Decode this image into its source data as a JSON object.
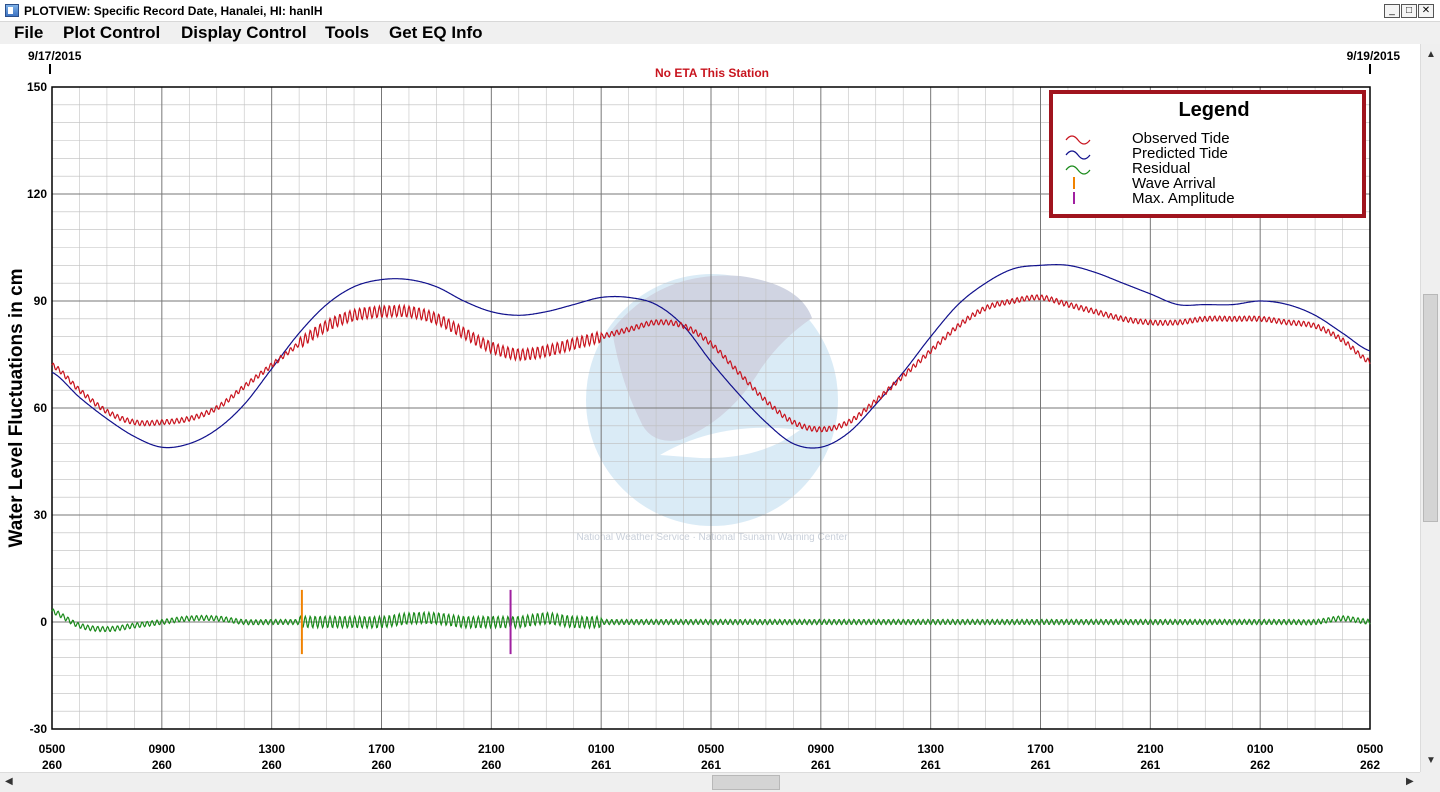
{
  "window": {
    "title": "PLOTVIEW: Specific Record Date, Hanalei, HI: hanlH",
    "controls": {
      "minimize": "_",
      "maximize": "□",
      "close": "✕"
    }
  },
  "menu": [
    {
      "id": "file",
      "label": "File"
    },
    {
      "id": "plot-control",
      "label": "Plot Control"
    },
    {
      "id": "display-control",
      "label": "Display Control"
    },
    {
      "id": "tools",
      "label": "Tools"
    },
    {
      "id": "get-eq-info",
      "label": "Get EQ Info"
    }
  ],
  "plot": {
    "date_start": "9/17/2015",
    "date_end": "9/19/2015",
    "eta_text": "No ETA This Station",
    "ylabel": "Water Level Fluctuations in cm",
    "watermark_text": "National Weather Service · National Tsunami Warning Center",
    "colors": {
      "observed": "#c8141e",
      "predicted": "#10108c",
      "residual": "#1a8a1a",
      "wave_arrival": "#f08200",
      "max_amplitude": "#a020a0",
      "legend_border": "#a0141e",
      "eta": "#c8141e",
      "grid": "#9a9a9a"
    }
  },
  "chart_data": {
    "type": "line",
    "title": "No ETA This Station",
    "ylabel": "Water Level Fluctuations in cm",
    "ylim": [
      -30,
      150
    ],
    "yticks": [
      -30,
      0,
      30,
      60,
      90,
      120,
      150
    ],
    "xlim_hours": [
      0,
      48
    ],
    "xticks": [
      {
        "hour": "0500",
        "day": "260"
      },
      {
        "hour": "0900",
        "day": "260"
      },
      {
        "hour": "1300",
        "day": "260"
      },
      {
        "hour": "1700",
        "day": "260"
      },
      {
        "hour": "2100",
        "day": "260"
      },
      {
        "hour": "0100",
        "day": "261"
      },
      {
        "hour": "0500",
        "day": "261"
      },
      {
        "hour": "0900",
        "day": "261"
      },
      {
        "hour": "1300",
        "day": "261"
      },
      {
        "hour": "1700",
        "day": "261"
      },
      {
        "hour": "2100",
        "day": "261"
      },
      {
        "hour": "0100",
        "day": "262"
      },
      {
        "hour": "0500",
        "day": "262"
      }
    ],
    "grid": true,
    "legend": {
      "title": "Legend",
      "position": "top-right",
      "items": [
        {
          "label": "Observed Tide",
          "key": "observed",
          "symbol": "wave"
        },
        {
          "label": "Predicted Tide",
          "key": "predicted",
          "symbol": "wave"
        },
        {
          "label": "Residual",
          "key": "residual",
          "symbol": "wave"
        },
        {
          "label": "Wave Arrival",
          "key": "wave_arrival",
          "symbol": "bar"
        },
        {
          "label": "Max. Amplitude",
          "key": "max_amplitude",
          "symbol": "bar"
        }
      ]
    },
    "series": [
      {
        "key": "predicted",
        "x": [
          0,
          1,
          2,
          3,
          4,
          5,
          6,
          7,
          8,
          9,
          10,
          11,
          12,
          13,
          14,
          15,
          16,
          17,
          18,
          19,
          20,
          21,
          22,
          23,
          24,
          25,
          26,
          27,
          28,
          29,
          30,
          31,
          32,
          33,
          34,
          35,
          36,
          37,
          38,
          39,
          40,
          41,
          42,
          43,
          44,
          45,
          46,
          47,
          48
        ],
        "y": [
          70,
          63,
          57,
          52,
          49,
          50,
          54,
          61,
          71,
          81,
          89,
          94,
          96,
          96,
          94,
          90,
          87,
          86,
          87,
          89,
          91,
          91,
          89,
          83,
          73,
          64,
          56,
          50,
          49,
          53,
          61,
          70,
          80,
          89,
          95,
          99,
          100,
          100,
          98,
          95,
          92,
          89,
          89,
          89,
          90,
          89,
          86,
          81,
          76
        ]
      },
      {
        "key": "observed",
        "x": [
          0,
          1,
          2,
          3,
          4,
          5,
          6,
          7,
          8,
          9,
          10,
          11,
          12,
          13,
          14,
          15,
          16,
          17,
          18,
          19,
          20,
          21,
          22,
          23,
          24,
          25,
          26,
          27,
          28,
          29,
          30,
          31,
          32,
          33,
          34,
          35,
          36,
          37,
          38,
          39,
          40,
          41,
          42,
          43,
          44,
          45,
          46,
          47,
          48
        ],
        "y": [
          72,
          65,
          59,
          56,
          56,
          57,
          60,
          66,
          72,
          78,
          83,
          86,
          87,
          87,
          85,
          81,
          77,
          75,
          76,
          78,
          80,
          82,
          84,
          83,
          78,
          70,
          62,
          56,
          54,
          56,
          62,
          69,
          76,
          83,
          88,
          90,
          91,
          89,
          87,
          85,
          84,
          84,
          85,
          85,
          85,
          84,
          83,
          79,
          73
        ]
      },
      {
        "key": "residual",
        "x": [
          0,
          1,
          2,
          3,
          4,
          5,
          6,
          7,
          8,
          9,
          10,
          11,
          12,
          13,
          14,
          15,
          16,
          17,
          18,
          19,
          20,
          21,
          22,
          23,
          24,
          25,
          26,
          27,
          28,
          29,
          30,
          31,
          32,
          33,
          34,
          35,
          36,
          37,
          38,
          39,
          40,
          41,
          42,
          43,
          44,
          45,
          46,
          47,
          48
        ],
        "y": [
          3,
          -1,
          -2,
          -1,
          0,
          1,
          1,
          0,
          0,
          0,
          0,
          0,
          0,
          1,
          1,
          0,
          0,
          0,
          1,
          0,
          0,
          0,
          0,
          0,
          0,
          0,
          0,
          0,
          0,
          0,
          0,
          0,
          0,
          0,
          0,
          0,
          0,
          0,
          0,
          0,
          0,
          0,
          0,
          0,
          0,
          0,
          0,
          1,
          0
        ]
      }
    ],
    "markers": [
      {
        "key": "wave_arrival",
        "label": "Wave Arrival",
        "x_hour": 9.1
      },
      {
        "key": "max_amplitude",
        "label": "Max. Amplitude",
        "x_hour": 16.7
      }
    ]
  }
}
